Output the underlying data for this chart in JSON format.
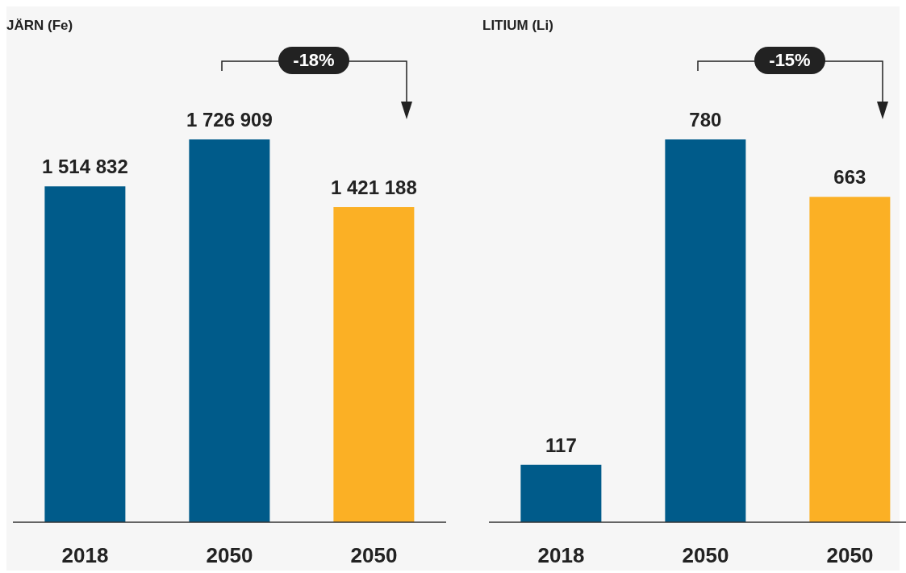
{
  "chart_data": [
    {
      "type": "bar",
      "title": "JÄRN (Fe)",
      "categories": [
        "2018",
        "2050",
        "2050"
      ],
      "values": [
        1514832,
        1726909,
        1421188
      ],
      "colors": [
        "#005b8a",
        "#005b8a",
        "#fbb025"
      ],
      "value_labels": [
        "1 514 832",
        "1 726 909",
        "1 421 188"
      ],
      "annotations": [
        "-18%"
      ],
      "grid": false,
      "legend": false
    },
    {
      "type": "bar",
      "title": "LITIUM (Li)",
      "categories": [
        "2018",
        "2050",
        "2050"
      ],
      "values": [
        117,
        780,
        663
      ],
      "colors": [
        "#005b8a",
        "#005b8a",
        "#fbb025"
      ],
      "value_labels": [
        "117",
        "780",
        "663"
      ],
      "annotations": [
        "-15%"
      ],
      "grid": false,
      "legend": false
    }
  ]
}
